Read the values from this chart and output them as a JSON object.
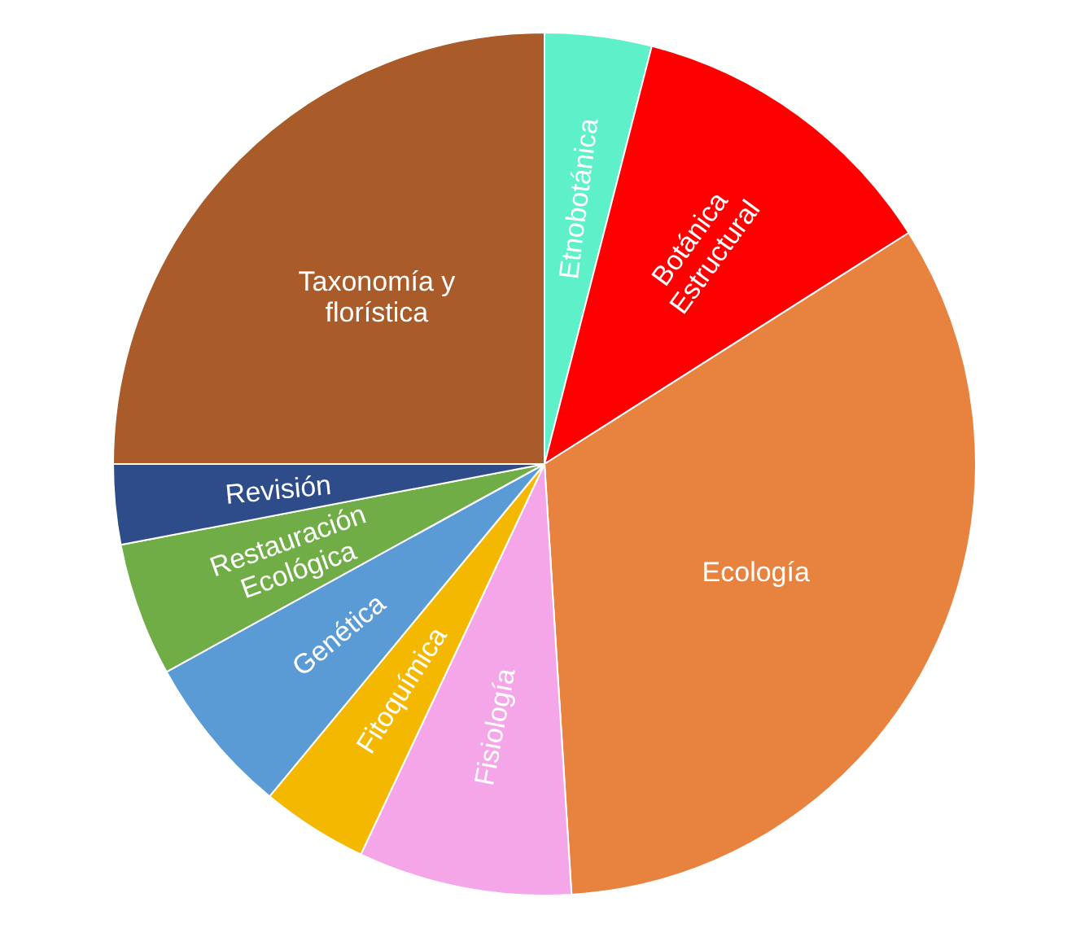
{
  "chart_data": {
    "type": "pie",
    "categories": [
      "Etnobotánica",
      "Botánica Estructural",
      "Ecología",
      "Fisiología",
      "Fitoquímica",
      "Genética",
      "Restauración Ecológica",
      "Revisión",
      "Taxonomía y florística"
    ],
    "values": [
      4,
      12,
      33,
      8,
      4,
      6,
      5,
      3,
      25
    ],
    "colors": [
      "#5ef0c8",
      "#ff0000",
      "#e8823f",
      "#f4a6e8",
      "#f5b800",
      "#5b9bd5",
      "#70ad47",
      "#2f4c8a",
      "#a95c2a"
    ]
  }
}
